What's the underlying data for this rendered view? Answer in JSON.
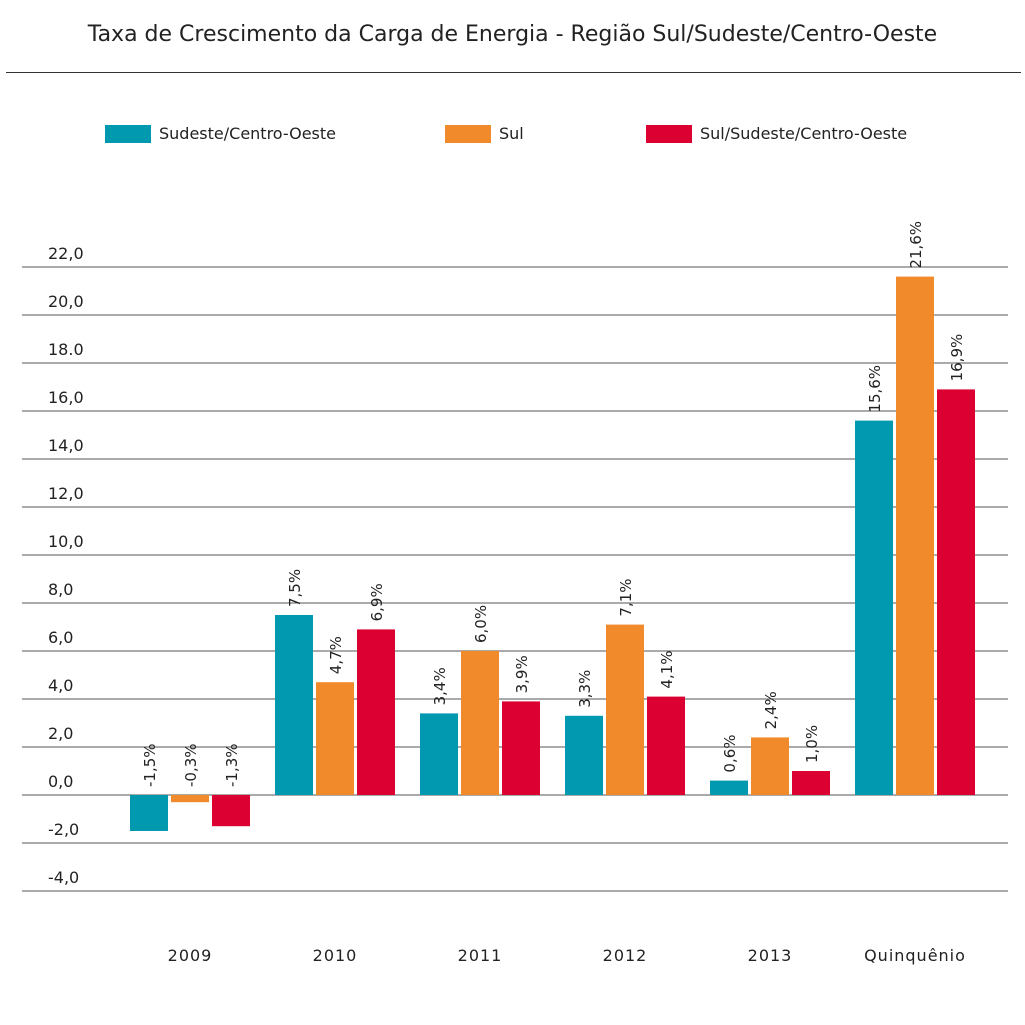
{
  "chart_data": {
    "type": "bar",
    "title": "Taxa de Crescimento da Carga de Energia - Região Sul/Sudeste/Centro-Oeste",
    "xlabel": "",
    "ylabel": "",
    "categories": [
      "2009",
      "2010",
      "2011",
      "2012",
      "2013",
      "Quinquênio"
    ],
    "series": [
      {
        "name": "Sudeste/Centro-Oeste",
        "color": "#0099B0",
        "values": [
          -1.5,
          7.5,
          3.4,
          3.3,
          0.6,
          15.6
        ],
        "labels": [
          "-1,5%",
          "7,5%",
          "3,4%",
          "3,3%",
          "0,6%",
          "15,6%"
        ]
      },
      {
        "name": "Sul",
        "color": "#F08A2A",
        "values": [
          -0.3,
          4.7,
          6.0,
          7.1,
          2.4,
          21.6
        ],
        "labels": [
          "-0,3%",
          "4,7%",
          "6,0%",
          "7,1%",
          "2,4%",
          "21,6%"
        ]
      },
      {
        "name": "Sul/Sudeste/Centro-Oeste",
        "color": "#DC0032",
        "values": [
          -1.3,
          6.9,
          3.9,
          4.1,
          1.0,
          16.9
        ],
        "labels": [
          "-1,3%",
          "6,9%",
          "3,9%",
          "4,1%",
          "1,0%",
          "16,9%"
        ]
      }
    ],
    "ylim": [
      -4,
      22
    ],
    "yticks": [
      22,
      20,
      18,
      16,
      14,
      12,
      10,
      8,
      6,
      4,
      2,
      0,
      -2,
      -4
    ],
    "ytick_labels": [
      "22,0",
      "20,0",
      "18.0",
      "16,0",
      "14,0",
      "12,0",
      "10,0",
      "8,0",
      "6,0",
      "4,0",
      "2,0",
      "0,0",
      "-2,0",
      "-4,0"
    ],
    "grid": true,
    "legend_position": "top"
  }
}
